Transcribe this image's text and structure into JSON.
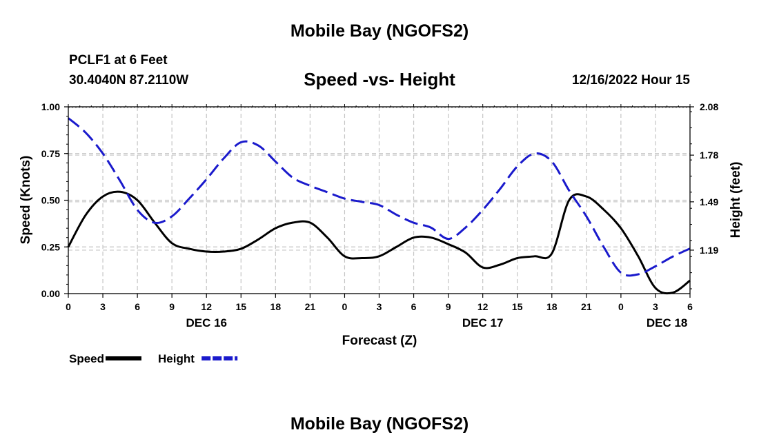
{
  "header": {
    "top_title": "Mobile Bay (NGOFS2)",
    "station_line": "PCLF1 at 6 Feet",
    "coords_line": "30.4040N  87.2110W",
    "date_line": "12/16/2022 Hour 15",
    "bottom_title": "Mobile Bay (NGOFS2)"
  },
  "chart_data": {
    "type": "line",
    "title": "Speed -vs- Height",
    "xlabel": "Forecast (Z)",
    "ylabel_left": "Speed (Knots)",
    "ylabel_right": "Height (feet)",
    "x_range": [
      0,
      54
    ],
    "x_tick_values": [
      0,
      3,
      6,
      9,
      12,
      15,
      18,
      21,
      24,
      27,
      30,
      33,
      36,
      39,
      42,
      45,
      48,
      51,
      54
    ],
    "x_tick_labels": [
      "0",
      "3",
      "6",
      "9",
      "12",
      "15",
      "18",
      "21",
      "0",
      "3",
      "6",
      "9",
      "12",
      "15",
      "18",
      "21",
      "0",
      "3",
      "6"
    ],
    "date_labels": [
      {
        "label": "DEC 16",
        "at_hour": 12
      },
      {
        "label": "DEC 17",
        "at_hour": 36
      },
      {
        "label": "DEC 18",
        "at_hour": 52
      }
    ],
    "y_left": {
      "range": [
        0,
        1.0
      ],
      "ticks": [
        0.0,
        0.25,
        0.5,
        0.75,
        1.0
      ],
      "tick_labels": [
        "0.00",
        "0.25",
        "0.50",
        "0.75",
        "1.00"
      ]
    },
    "y_right": {
      "range": [
        0.92,
        2.08
      ],
      "ticks": [
        1.19,
        1.49,
        1.78,
        2.08
      ],
      "tick_labels": [
        "1.19",
        "1.49",
        "1.78",
        "2.08"
      ]
    },
    "grid": true,
    "series": [
      {
        "name": "Speed",
        "axis": "left",
        "color": "#000000",
        "style": "solid",
        "x": [
          0,
          1.5,
          3,
          4.5,
          6,
          7.5,
          9,
          10.5,
          12,
          13.5,
          15,
          16.5,
          18,
          19.5,
          21,
          22.5,
          24,
          25.5,
          27,
          28.5,
          30,
          31.5,
          33,
          34.5,
          36,
          37.5,
          39,
          40.5,
          42,
          43.5,
          45,
          46.5,
          48,
          49.5,
          51,
          52.5,
          54
        ],
        "values": [
          0.25,
          0.42,
          0.52,
          0.545,
          0.5,
          0.38,
          0.27,
          0.24,
          0.225,
          0.225,
          0.24,
          0.29,
          0.35,
          0.38,
          0.38,
          0.3,
          0.2,
          0.19,
          0.2,
          0.25,
          0.3,
          0.3,
          0.265,
          0.22,
          0.14,
          0.155,
          0.19,
          0.2,
          0.215,
          0.5,
          0.52,
          0.45,
          0.35,
          0.2,
          0.03,
          0.005,
          0.07
        ]
      },
      {
        "name": "Height",
        "axis": "right",
        "color": "#1a1acc",
        "style": "dashed",
        "x": [
          0,
          1.5,
          3,
          4.5,
          6,
          7.5,
          9,
          10.5,
          12,
          13.5,
          15,
          16.5,
          18,
          19.5,
          21,
          22.5,
          24,
          25.5,
          27,
          28.5,
          30,
          31.5,
          33,
          34.5,
          36,
          37.5,
          39,
          40.5,
          42,
          43.5,
          45,
          46.5,
          48,
          49.5,
          51,
          52.5,
          54
        ],
        "values": [
          2.01,
          1.92,
          1.79,
          1.62,
          1.44,
          1.36,
          1.4,
          1.51,
          1.63,
          1.76,
          1.86,
          1.84,
          1.74,
          1.64,
          1.59,
          1.55,
          1.51,
          1.49,
          1.47,
          1.41,
          1.36,
          1.33,
          1.26,
          1.33,
          1.44,
          1.57,
          1.71,
          1.79,
          1.74,
          1.56,
          1.4,
          1.21,
          1.05,
          1.04,
          1.09,
          1.15,
          1.2
        ]
      }
    ],
    "legend": [
      {
        "label": "Speed",
        "color": "#000000",
        "style": "solid"
      },
      {
        "label": "Height",
        "color": "#1a1acc",
        "style": "dashed"
      }
    ],
    "legend_placement": "bottom-left"
  }
}
